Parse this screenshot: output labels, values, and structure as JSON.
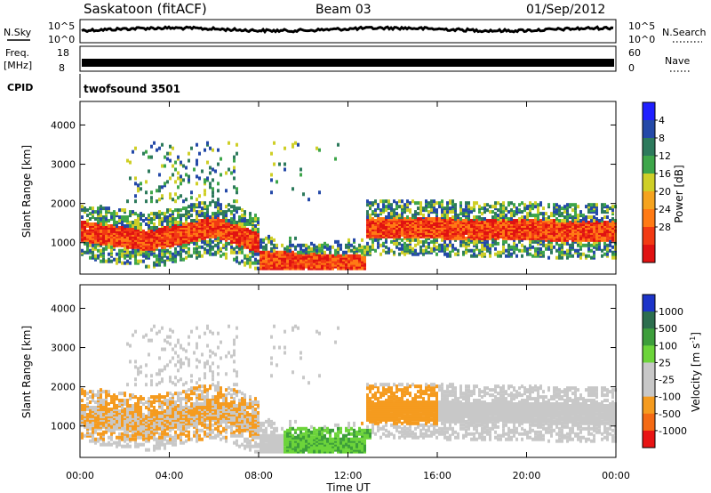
{
  "header": {
    "station": "Saskatoon (fitACF)",
    "beam": "Beam 03",
    "date": "01/Sep/2012"
  },
  "strip_labels": {
    "nsky": "N.Sky",
    "nsky_ticks": [
      "10^5",
      "10^0"
    ],
    "nsearch": "N.Search",
    "nsearch_ticks": [
      "10^5",
      "10^0"
    ],
    "freq_line1": "Freq.",
    "freq_line2": "[MHz]",
    "freq_ticks": [
      "18",
      "8"
    ],
    "nave": "Nave",
    "nave_ticks": [
      "60",
      "0"
    ],
    "cpid": "CPID",
    "cpid_value": "twofsound 3501"
  },
  "chart_data": [
    {
      "type": "heatmap",
      "ylabel": "Slant Range [km]",
      "xlabel": "",
      "ylim": [
        200,
        4600
      ],
      "y_ticks": [
        "1000",
        "2000",
        "3000",
        "4000"
      ],
      "colorbar": {
        "label": "Power [dB]",
        "ticks": [
          "4",
          "8",
          "12",
          "16",
          "20",
          "24",
          "28"
        ],
        "colors": [
          "#1f1fff",
          "#2449a8",
          "#2d7a5c",
          "#3ea64a",
          "#cfcf27",
          "#f5a31f",
          "#ff7a14",
          "#f23a13",
          "#e01212"
        ]
      },
      "x_ticks": [
        "00:00",
        "04:00",
        "08:00",
        "12:00",
        "16:00",
        "20:00",
        "00:00"
      ]
    },
    {
      "type": "heatmap",
      "ylabel": "Slant Range [km]",
      "xlabel": "Time UT",
      "ylim": [
        200,
        4600
      ],
      "y_ticks": [
        "1000",
        "2000",
        "3000",
        "4000"
      ],
      "colorbar": {
        "label": "Velocity [m s",
        "label_superscript": "-1",
        "label_close": "]",
        "ticks": [
          "1000",
          "500",
          "100",
          "25",
          "-25",
          "-100",
          "-500",
          "-1000"
        ],
        "colors": [
          "#1c34c9",
          "#2c6e4e",
          "#3d9e3b",
          "#6cd43a",
          "#c8c8c8",
          "#c8c8c8",
          "#f59b1f",
          "#f46a14",
          "#e81414"
        ]
      },
      "x_ticks": [
        "00:00",
        "04:00",
        "08:00",
        "12:00",
        "16:00",
        "20:00",
        "00:00"
      ]
    }
  ]
}
